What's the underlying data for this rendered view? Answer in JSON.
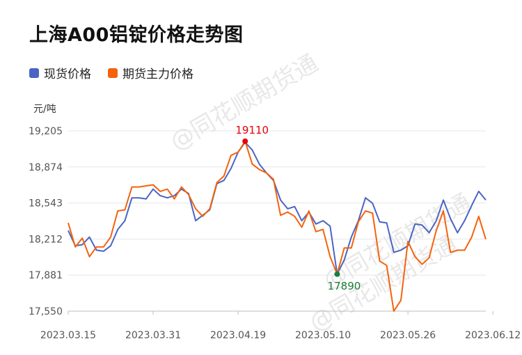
{
  "title": "上海A00铝锭价格走势图",
  "unit_label": "元/吨",
  "watermark": "@同花顺期货通",
  "legend": [
    {
      "label": "现货价格",
      "color": "#4a64c4"
    },
    {
      "label": "期货主力价格",
      "color": "#f5620a"
    }
  ],
  "chart_data": {
    "type": "line",
    "title": "上海A00铝锭价格走势图",
    "ylabel": "元/吨",
    "xlabel": "",
    "ylim": [
      17550,
      19205
    ],
    "y_ticks": [
      "19,205",
      "18,874",
      "18,543",
      "18,212",
      "17,881",
      "17,550"
    ],
    "y_tick_values": [
      19205,
      18874,
      18543,
      18212,
      17881,
      17550
    ],
    "x_tick_labels": [
      "2023.03.15",
      "2023.03.31",
      "2023.04.19",
      "2023.05.10",
      "2023.05.26",
      "2023.06.12"
    ],
    "x_tick_indices": [
      0,
      12,
      24,
      36,
      48,
      60
    ],
    "grid": true,
    "legend_position": "top-left",
    "series": [
      {
        "name": "现货价格",
        "color": "#4a64c4",
        "values": [
          18290,
          18150,
          18160,
          18230,
          18110,
          18100,
          18150,
          18300,
          18380,
          18590,
          18590,
          18580,
          18670,
          18610,
          18590,
          18610,
          18670,
          18630,
          18380,
          18430,
          18480,
          18720,
          18750,
          18860,
          19010,
          19100,
          19030,
          18900,
          18820,
          18750,
          18570,
          18490,
          18510,
          18380,
          18460,
          18350,
          18380,
          18330,
          17890,
          18020,
          18230,
          18380,
          18590,
          18540,
          18370,
          18360,
          18090,
          18110,
          18150,
          18350,
          18340,
          18270,
          18380,
          18570,
          18400,
          18270,
          18380,
          18520,
          18650,
          18570
        ]
      },
      {
        "name": "期货主力价格",
        "color": "#f5620a",
        "values": [
          18360,
          18140,
          18220,
          18050,
          18140,
          18140,
          18230,
          18470,
          18480,
          18690,
          18690,
          18700,
          18710,
          18650,
          18670,
          18580,
          18690,
          18620,
          18490,
          18420,
          18490,
          18730,
          18790,
          18980,
          19010,
          19110,
          18900,
          18850,
          18820,
          18760,
          18430,
          18460,
          18420,
          18320,
          18470,
          18280,
          18300,
          18050,
          17890,
          18130,
          18130,
          18370,
          18470,
          18450,
          18010,
          17970,
          17550,
          17650,
          18190,
          18050,
          17980,
          18040,
          18290,
          18470,
          18090,
          18110,
          18110,
          18230,
          18420,
          18210
        ]
      }
    ],
    "annotations": [
      {
        "text": "19110",
        "series": "期货主力价格",
        "index": 25,
        "value": 19110,
        "color": "#e8000b",
        "position": "above"
      },
      {
        "text": "17890",
        "series": "现货价格",
        "index": 38,
        "value": 17890,
        "color": "#1a7f37",
        "position": "below"
      }
    ]
  }
}
